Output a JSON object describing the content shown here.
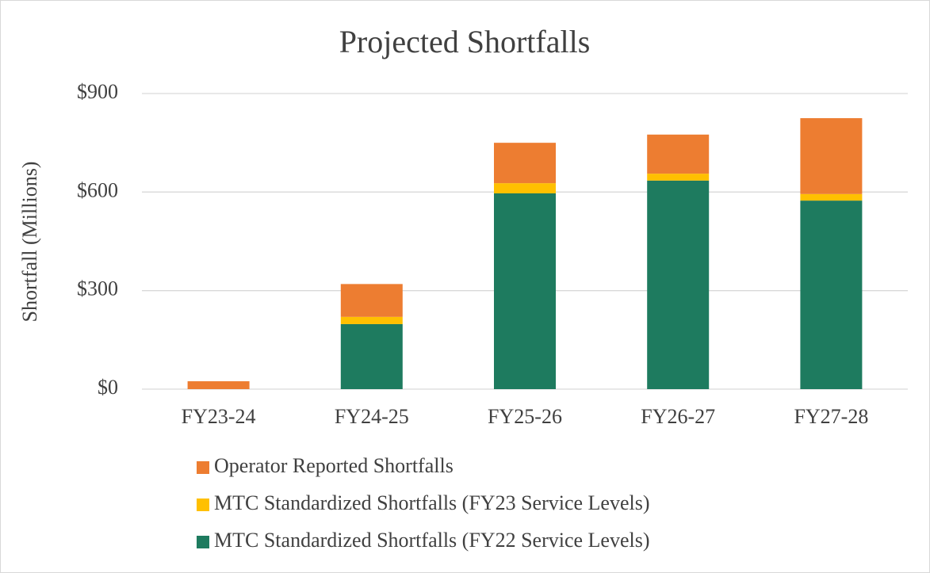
{
  "chart_data": {
    "type": "stacked_bar",
    "title": "Projected Shortfalls",
    "y_label": "Shortfall (Millions)",
    "categories": [
      "FY23-24",
      "FY24-25",
      "FY25-26",
      "FY26-27",
      "FY27-28"
    ],
    "series": [
      {
        "name": "MTC Standardized Shortfalls (FY22 Service Levels)",
        "color": "#1e7b5f",
        "values": [
          0,
          198,
          596,
          635,
          574
        ]
      },
      {
        "name": "MTC Standardized Shortfalls (FY23 Service Levels)",
        "color": "#ffc000",
        "values": [
          0,
          22,
          31,
          21,
          20
        ]
      },
      {
        "name": "Operator Reported Shortfalls",
        "color": "#ed7d31",
        "values": [
          24,
          100,
          123,
          119,
          231
        ]
      }
    ],
    "ylim": [
      0,
      900
    ],
    "yticks": [
      {
        "value": 0,
        "label": "$0"
      },
      {
        "value": 300,
        "label": "$300"
      },
      {
        "value": 600,
        "label": "$600"
      },
      {
        "value": 900,
        "label": "$900"
      }
    ],
    "grid": true,
    "legend": "bottom"
  }
}
